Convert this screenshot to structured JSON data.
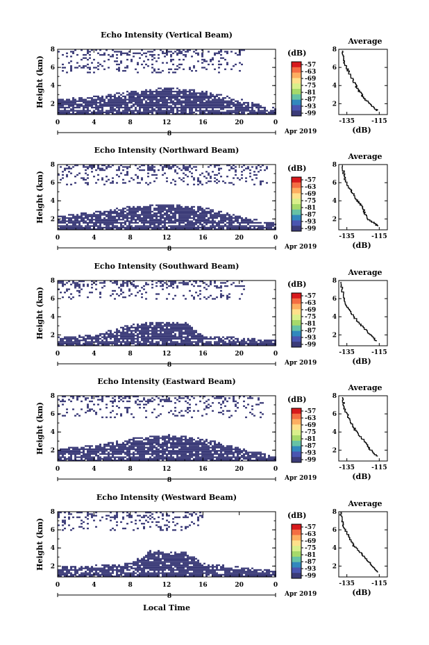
{
  "figure": {
    "xlabel": "Local Time",
    "date_label": "Apr 2019",
    "day_label": "8",
    "colorbar_unit": "(dB)",
    "avg_title": "Average",
    "avg_xlabel": "(dB)",
    "colors": {
      "echo": "#3b3b78",
      "background": "#ffffff"
    }
  },
  "chart_data": [
    {
      "type": "heatmap",
      "title": "Echo Intensity (Vertical Beam)",
      "ylabel": "Height (km)",
      "x_ticks": [
        "0",
        "4",
        "8",
        "12",
        "16",
        "20",
        "0"
      ],
      "y_ticks": [
        "2",
        "4",
        "6",
        "8"
      ],
      "xlim": [
        0,
        24
      ],
      "ylim": [
        0.8,
        8
      ],
      "colorbar_ticks": [
        "-57",
        "-63",
        "-69",
        "-75",
        "-81",
        "-87",
        "-93",
        "-99"
      ],
      "upper_band": {
        "x": [
          0,
          20.5
        ],
        "y": [
          5.5,
          8
        ]
      },
      "lower_layer": [
        [
          0,
          2.6
        ],
        [
          4,
          2.9
        ],
        [
          8,
          3.5
        ],
        [
          12,
          3.9
        ],
        [
          16,
          3.5
        ],
        [
          20,
          2.6
        ],
        [
          22.5,
          2.0
        ],
        [
          24,
          1.6
        ]
      ],
      "average": {
        "x_ticks": [
          "-135",
          "-115"
        ],
        "xlim": [
          -140,
          -110
        ],
        "y_ticks": [
          "2",
          "4",
          "6",
          "8"
        ],
        "ylim": [
          0.8,
          8
        ],
        "points": [
          [
            -138,
            7.8
          ],
          [
            -137,
            7.0
          ],
          [
            -136,
            6.2
          ],
          [
            -134,
            5.5
          ],
          [
            -132,
            4.8
          ],
          [
            -130,
            4.1
          ],
          [
            -128,
            3.5
          ],
          [
            -126,
            3.0
          ],
          [
            -124,
            2.5
          ],
          [
            -121,
            1.9
          ],
          [
            -118,
            1.5
          ],
          [
            -116,
            1.2
          ]
        ]
      }
    },
    {
      "type": "heatmap",
      "title": "Echo Intensity (Northward Beam)",
      "ylabel": "Height (km)",
      "x_ticks": [
        "0",
        "4",
        "8",
        "12",
        "16",
        "20",
        "0"
      ],
      "y_ticks": [
        "2",
        "4",
        "6",
        "8"
      ],
      "xlim": [
        0,
        24
      ],
      "ylim": [
        0.8,
        8
      ],
      "colorbar_ticks": [
        "-57",
        "-63",
        "-69",
        "-75",
        "-81",
        "-87",
        "-93",
        "-99"
      ],
      "upper_band": {
        "x": [
          0,
          23
        ],
        "y": [
          5.8,
          8
        ]
      },
      "lower_layer": [
        [
          0,
          2.4
        ],
        [
          4,
          2.9
        ],
        [
          8,
          3.5
        ],
        [
          12,
          3.7
        ],
        [
          16,
          3.4
        ],
        [
          20,
          2.4
        ],
        [
          22.5,
          1.9
        ],
        [
          24,
          1.6
        ]
      ],
      "average": {
        "x_ticks": [
          "-135",
          "-115"
        ],
        "xlim": [
          -140,
          -110
        ],
        "y_ticks": [
          "2",
          "4",
          "6",
          "8"
        ],
        "ylim": [
          0.8,
          8
        ],
        "points": [
          [
            -138,
            7.9
          ],
          [
            -137,
            7.0
          ],
          [
            -136,
            6.2
          ],
          [
            -134,
            5.4
          ],
          [
            -131,
            4.8
          ],
          [
            -129,
            4.1
          ],
          [
            -127,
            3.6
          ],
          [
            -125,
            3.1
          ],
          [
            -124,
            2.6
          ],
          [
            -122,
            1.9
          ],
          [
            -118,
            1.5
          ],
          [
            -116,
            1.2
          ]
        ]
      }
    },
    {
      "type": "heatmap",
      "title": "Echo Intensity (Southward Beam)",
      "ylabel": "Height (km)",
      "x_ticks": [
        "0",
        "4",
        "8",
        "12",
        "16",
        "20",
        "0"
      ],
      "y_ticks": [
        "2",
        "4",
        "6",
        "8"
      ],
      "xlim": [
        0,
        24
      ],
      "ylim": [
        0.8,
        8
      ],
      "colorbar_ticks": [
        "-57",
        "-63",
        "-69",
        "-75",
        "-81",
        "-87",
        "-93",
        "-99"
      ],
      "upper_band": {
        "x": [
          0,
          20.5
        ],
        "y": [
          6.0,
          8
        ]
      },
      "lower_layer": [
        [
          0,
          1.9
        ],
        [
          4,
          2.1
        ],
        [
          8,
          3.3
        ],
        [
          12,
          3.6
        ],
        [
          14,
          3.5
        ],
        [
          16,
          2.0
        ],
        [
          20,
          1.8
        ],
        [
          24,
          1.5
        ]
      ],
      "average": {
        "x_ticks": [
          "-135",
          "-115"
        ],
        "xlim": [
          -140,
          -110
        ],
        "y_ticks": [
          "2",
          "4",
          "6",
          "8"
        ],
        "ylim": [
          0.8,
          8
        ],
        "points": [
          [
            -139,
            7.8
          ],
          [
            -138,
            7.0
          ],
          [
            -137,
            6.2
          ],
          [
            -136,
            5.4
          ],
          [
            -134,
            4.7
          ],
          [
            -131,
            4.0
          ],
          [
            -128,
            3.4
          ],
          [
            -125,
            2.8
          ],
          [
            -122,
            2.2
          ],
          [
            -119,
            1.7
          ],
          [
            -117,
            1.3
          ]
        ]
      }
    },
    {
      "type": "heatmap",
      "title": "Echo Intensity (Eastward Beam)",
      "ylabel": "Height (km)",
      "x_ticks": [
        "0",
        "4",
        "8",
        "12",
        "16",
        "20",
        "0"
      ],
      "y_ticks": [
        "2",
        "4",
        "6",
        "8"
      ],
      "xlim": [
        0,
        24
      ],
      "ylim": [
        0.8,
        8
      ],
      "colorbar_ticks": [
        "-57",
        "-63",
        "-69",
        "-75",
        "-81",
        "-87",
        "-93",
        "-99"
      ],
      "upper_band": {
        "x": [
          0,
          22.5
        ],
        "y": [
          5.6,
          8
        ]
      },
      "lower_layer": [
        [
          0,
          2.4
        ],
        [
          4,
          2.6
        ],
        [
          8,
          3.4
        ],
        [
          12,
          3.8
        ],
        [
          16,
          3.4
        ],
        [
          20,
          2.3
        ],
        [
          22.5,
          1.8
        ],
        [
          24,
          1.5
        ]
      ],
      "average": {
        "x_ticks": [
          "-135",
          "-115"
        ],
        "xlim": [
          -140,
          -110
        ],
        "y_ticks": [
          "2",
          "4",
          "6",
          "8"
        ],
        "ylim": [
          0.8,
          8
        ],
        "points": [
          [
            -138,
            7.8
          ],
          [
            -137,
            7.0
          ],
          [
            -136,
            6.3
          ],
          [
            -134,
            5.6
          ],
          [
            -132,
            4.9
          ],
          [
            -130,
            4.2
          ],
          [
            -127,
            3.5
          ],
          [
            -124,
            2.9
          ],
          [
            -122,
            2.3
          ],
          [
            -119,
            1.7
          ],
          [
            -116,
            1.3
          ]
        ]
      }
    },
    {
      "type": "heatmap",
      "title": "Echo Intensity (Westward Beam)",
      "ylabel": "Height (km)",
      "x_ticks": [
        "0",
        "4",
        "8",
        "12",
        "16",
        "20",
        "0"
      ],
      "y_ticks": [
        "2",
        "4",
        "6",
        "8"
      ],
      "xlim": [
        0,
        24
      ],
      "ylim": [
        0.8,
        8
      ],
      "colorbar_ticks": [
        "-57",
        "-63",
        "-69",
        "-75",
        "-81",
        "-87",
        "-93",
        "-99"
      ],
      "upper_band": {
        "x": [
          0,
          16
        ],
        "y": [
          6.0,
          8
        ]
      },
      "lower_layer": [
        [
          0,
          2.0
        ],
        [
          4,
          2.2
        ],
        [
          8,
          2.4
        ],
        [
          10,
          3.8
        ],
        [
          14,
          3.7
        ],
        [
          16,
          2.4
        ],
        [
          20,
          2.0
        ],
        [
          24,
          1.6
        ]
      ],
      "average": {
        "x_ticks": [
          "-135",
          "-115"
        ],
        "xlim": [
          -140,
          -110
        ],
        "y_ticks": [
          "2",
          "4",
          "6",
          "8"
        ],
        "ylim": [
          0.8,
          8
        ],
        "points": [
          [
            -139,
            7.9
          ],
          [
            -138,
            7.0
          ],
          [
            -137,
            6.3
          ],
          [
            -135,
            5.6
          ],
          [
            -133,
            4.9
          ],
          [
            -131,
            4.2
          ],
          [
            -127,
            3.5
          ],
          [
            -124,
            2.9
          ],
          [
            -121,
            2.3
          ],
          [
            -118,
            1.7
          ],
          [
            -116,
            1.3
          ]
        ]
      }
    }
  ]
}
